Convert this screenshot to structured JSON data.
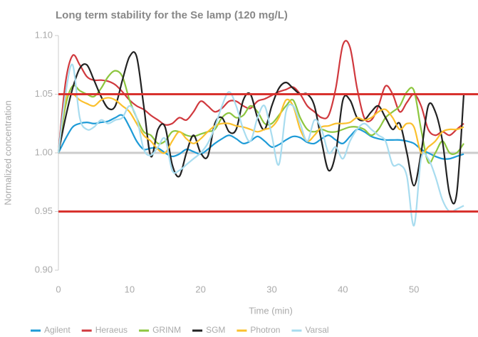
{
  "chart_data": {
    "type": "line",
    "title": "Long term stability for the Se lamp (120 mg/L)",
    "x_label": "Time (min)",
    "y_label": "Normalized concentration",
    "x": [
      0,
      1,
      2,
      3,
      4,
      5,
      6,
      7,
      8,
      9,
      10,
      11,
      12,
      13,
      14,
      15,
      16,
      17,
      18,
      19,
      20,
      21,
      22,
      23,
      24,
      25,
      26,
      27,
      28,
      29,
      30,
      31,
      32,
      33,
      34,
      35,
      36,
      37,
      38,
      39,
      40,
      41,
      42,
      43,
      44,
      45,
      46,
      47,
      48,
      49,
      50,
      51,
      52,
      53,
      54,
      55,
      56,
      57
    ],
    "xlim": [
      0,
      59
    ],
    "xticks": [
      0,
      10,
      20,
      30,
      40,
      50
    ],
    "ylim": [
      0.9,
      1.1
    ],
    "yticks": [
      {
        "value": 0.9,
        "label": "0.90"
      },
      0.95,
      {
        "value": 1.0,
        "label": "1.00"
      },
      1.05,
      {
        "value": 1.1,
        "label": "1.10"
      }
    ],
    "reference_lines": [
      {
        "value": 1.05,
        "color": "#d8322e"
      },
      {
        "value": 0.95,
        "color": "#d8322e"
      },
      {
        "value": 1.0,
        "color": "#cccccc"
      }
    ],
    "series": [
      {
        "name": "Agilent",
        "color": "#1e9bd7",
        "values": [
          1.0,
          1.012,
          1.022,
          1.025,
          1.026,
          1.025,
          1.026,
          1.027,
          1.03,
          1.032,
          1.022,
          1.01,
          1.003,
          1.004,
          1.004,
          1.0,
          0.997,
          0.999,
          1.003,
          1.001,
          0.999,
          1.003,
          1.008,
          1.012,
          1.015,
          1.012,
          1.008,
          1.01,
          1.014,
          1.01,
          1.005,
          1.007,
          1.011,
          1.014,
          1.013,
          1.009,
          1.008,
          1.012,
          1.015,
          1.011,
          1.008,
          1.014,
          1.02,
          1.018,
          1.014,
          1.012,
          1.011,
          1.011,
          1.011,
          1.01,
          1.008,
          1.003,
          1.0,
          0.997,
          0.995,
          0.995,
          0.997,
          0.999
        ]
      },
      {
        "name": "Heraeus",
        "color": "#d0393e",
        "values": [
          1.0,
          1.06,
          1.083,
          1.075,
          1.065,
          1.062,
          1.062,
          1.061,
          1.058,
          1.052,
          1.045,
          1.04,
          1.037,
          1.032,
          1.028,
          1.024,
          1.025,
          1.03,
          1.028,
          1.035,
          1.044,
          1.04,
          1.035,
          1.038,
          1.044,
          1.044,
          1.04,
          1.038,
          1.044,
          1.046,
          1.049,
          1.052,
          1.054,
          1.056,
          1.05,
          1.04,
          1.035,
          1.03,
          1.032,
          1.055,
          1.092,
          1.09,
          1.055,
          1.03,
          1.028,
          1.04,
          1.057,
          1.05,
          1.035,
          1.043,
          1.05,
          1.04,
          1.02,
          1.015,
          1.018,
          1.015,
          1.02,
          1.025
        ]
      },
      {
        "name": "GRINM",
        "color": "#8dc63f",
        "values": [
          1.0,
          1.04,
          1.057,
          1.053,
          1.05,
          1.048,
          1.055,
          1.065,
          1.07,
          1.065,
          1.045,
          1.03,
          1.018,
          1.015,
          1.008,
          1.01,
          1.018,
          1.018,
          1.015,
          1.014,
          1.016,
          1.018,
          1.02,
          1.03,
          1.034,
          1.03,
          1.032,
          1.04,
          1.035,
          1.025,
          1.025,
          1.032,
          1.04,
          1.045,
          1.03,
          1.02,
          1.018,
          1.02,
          1.018,
          1.018,
          1.02,
          1.022,
          1.022,
          1.02,
          1.015,
          1.02,
          1.03,
          1.035,
          1.04,
          1.052,
          1.053,
          1.02,
          0.992,
          1.0,
          1.01,
          1.0,
          1.0,
          1.008
        ]
      },
      {
        "name": "SGM",
        "color": "#222222",
        "values": [
          1.0,
          1.03,
          1.055,
          1.072,
          1.075,
          1.062,
          1.048,
          1.038,
          1.04,
          1.062,
          1.082,
          1.082,
          1.04,
          0.997,
          1.02,
          1.022,
          0.99,
          0.98,
          1.0,
          1.015,
          1.0,
          0.997,
          1.025,
          1.03,
          1.018,
          1.02,
          1.045,
          1.05,
          1.03,
          1.02,
          1.04,
          1.055,
          1.06,
          1.055,
          1.05,
          1.05,
          1.04,
          1.01,
          0.985,
          1.0,
          1.045,
          1.045,
          1.03,
          1.028,
          1.035,
          1.04,
          1.03,
          1.02,
          1.025,
          1.0,
          0.972,
          1.0,
          1.04,
          1.035,
          1.01,
          0.965,
          0.965,
          1.05
        ]
      },
      {
        "name": "Photron",
        "color": "#fbc02d",
        "values": [
          1.0,
          1.045,
          1.05,
          1.045,
          1.042,
          1.04,
          1.045,
          1.047,
          1.045,
          1.04,
          1.035,
          1.025,
          1.015,
          1.01,
          1.003,
          1.0,
          1.01,
          1.018,
          1.012,
          1.008,
          1.012,
          1.018,
          1.023,
          1.025,
          1.025,
          1.023,
          1.022,
          1.02,
          1.018,
          1.02,
          1.022,
          1.03,
          1.045,
          1.04,
          1.02,
          1.01,
          1.015,
          1.022,
          1.023,
          1.025,
          1.025,
          1.026,
          1.03,
          1.028,
          1.03,
          1.035,
          1.037,
          1.03,
          1.02,
          1.025,
          1.022,
          1.0,
          1.005,
          1.01,
          1.018,
          1.02,
          1.02,
          1.022
        ]
      },
      {
        "name": "Varsal",
        "color": "#a8dcef",
        "values": [
          1.0,
          1.05,
          1.075,
          1.03,
          1.02,
          1.022,
          1.028,
          1.025,
          1.028,
          1.03,
          1.04,
          1.03,
          1.003,
          0.998,
          1.005,
          1.012,
          0.985,
          0.985,
          0.99,
          0.995,
          1.0,
          1.008,
          1.022,
          1.04,
          1.052,
          1.04,
          1.02,
          1.01,
          1.03,
          1.04,
          1.015,
          0.99,
          1.035,
          1.04,
          1.025,
          1.01,
          1.028,
          1.02,
          1.0,
          1.005,
          0.995,
          1.01,
          1.02,
          1.025,
          1.02,
          1.015,
          1.01,
          0.99,
          0.99,
          0.98,
          0.938,
          0.995,
          0.995,
          0.98,
          0.96,
          0.95,
          0.952,
          0.955
        ]
      }
    ]
  }
}
